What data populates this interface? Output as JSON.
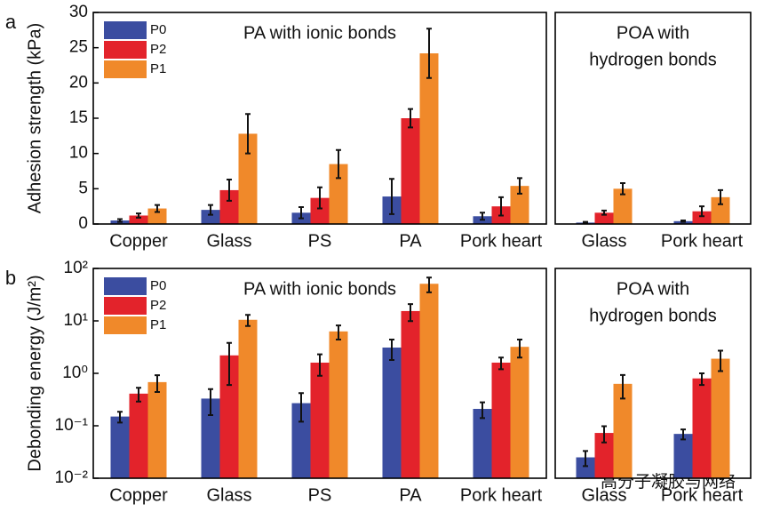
{
  "watermark": "高分子凝胶与网络",
  "chart_data": [
    {
      "type": "bar",
      "panel_label": "a",
      "ylabel": "Adhesion strength (kPa)",
      "annotation": [
        "PA with ionic bonds"
      ],
      "categories": [
        "Copper",
        "Glass",
        "PS",
        "PA",
        "Pork heart"
      ],
      "series": [
        {
          "name": "P0",
          "color": "#3b4da0",
          "values": [
            0.5,
            2.0,
            1.6,
            3.9,
            1.1
          ],
          "errors": [
            0.2,
            0.7,
            0.8,
            2.5,
            0.5
          ]
        },
        {
          "name": "P2",
          "color": "#e3232b",
          "values": [
            1.2,
            4.8,
            3.7,
            15.0,
            2.5
          ],
          "errors": [
            0.3,
            1.5,
            1.5,
            1.3,
            1.3
          ]
        },
        {
          "name": "P1",
          "color": "#f0892a",
          "values": [
            2.2,
            12.8,
            8.5,
            24.2,
            5.4
          ],
          "errors": [
            0.5,
            2.8,
            2.0,
            3.5,
            1.1
          ]
        }
      ],
      "ylim": [
        0,
        30
      ],
      "yticks": [
        0,
        5,
        10,
        15,
        20,
        25,
        30
      ],
      "legend": "upper left"
    },
    {
      "type": "bar",
      "annotation": [
        "POA with",
        "hydrogen bonds"
      ],
      "categories": [
        "Glass",
        "Pork heart"
      ],
      "series": [
        {
          "name": "P0",
          "color": "#3b4da0",
          "values": [
            0.2,
            0.4
          ],
          "errors": [
            0.1,
            0.1
          ]
        },
        {
          "name": "P2",
          "color": "#e3232b",
          "values": [
            1.6,
            1.8
          ],
          "errors": [
            0.3,
            0.7
          ]
        },
        {
          "name": "P1",
          "color": "#f0892a",
          "values": [
            5.0,
            3.8
          ],
          "errors": [
            0.8,
            1.0
          ]
        }
      ],
      "ylim": [
        0,
        30
      ]
    },
    {
      "type": "bar",
      "panel_label": "b",
      "ylabel": "Debonding energy (J/m²)",
      "annotation": [
        "PA with ionic bonds"
      ],
      "log_scale": true,
      "categories": [
        "Copper",
        "Glass",
        "PS",
        "PA",
        "Pork heart"
      ],
      "series": [
        {
          "name": "P0",
          "color": "#3b4da0",
          "values": [
            0.15,
            0.33,
            0.27,
            3.1,
            0.21
          ],
          "errors": [
            0.035,
            0.17,
            0.15,
            1.3,
            0.07
          ]
        },
        {
          "name": "P2",
          "color": "#e3232b",
          "values": [
            0.41,
            2.2,
            1.6,
            15.4,
            1.6
          ],
          "errors": [
            0.12,
            1.6,
            0.7,
            5.5,
            0.4
          ]
        },
        {
          "name": "P1",
          "color": "#f0892a",
          "values": [
            0.68,
            10.5,
            6.3,
            51,
            3.2
          ],
          "errors": [
            0.24,
            2.5,
            1.9,
            16,
            1.2
          ]
        }
      ],
      "ylim": [
        0.01,
        100
      ],
      "yticks": [
        {
          "value": 0.01,
          "label": "10⁻²"
        },
        {
          "value": 0.1,
          "label": "10⁻¹"
        },
        {
          "value": 1,
          "label": "10⁰"
        },
        {
          "value": 10,
          "label": "10¹"
        },
        {
          "value": 100,
          "label": "10²"
        }
      ],
      "legend": "upper left"
    },
    {
      "type": "bar",
      "annotation": [
        "POA with",
        "hydrogen bonds"
      ],
      "log_scale": true,
      "categories": [
        "Glass",
        "Pork heart"
      ],
      "series": [
        {
          "name": "P0",
          "color": "#3b4da0",
          "values": [
            0.025,
            0.07
          ],
          "errors": [
            0.008,
            0.015
          ]
        },
        {
          "name": "P2",
          "color": "#e3232b",
          "values": [
            0.073,
            0.8
          ],
          "errors": [
            0.025,
            0.2
          ]
        },
        {
          "name": "P1",
          "color": "#f0892a",
          "values": [
            0.63,
            1.9
          ],
          "errors": [
            0.3,
            0.8
          ]
        }
      ],
      "ylim": [
        0.01,
        100
      ]
    }
  ]
}
